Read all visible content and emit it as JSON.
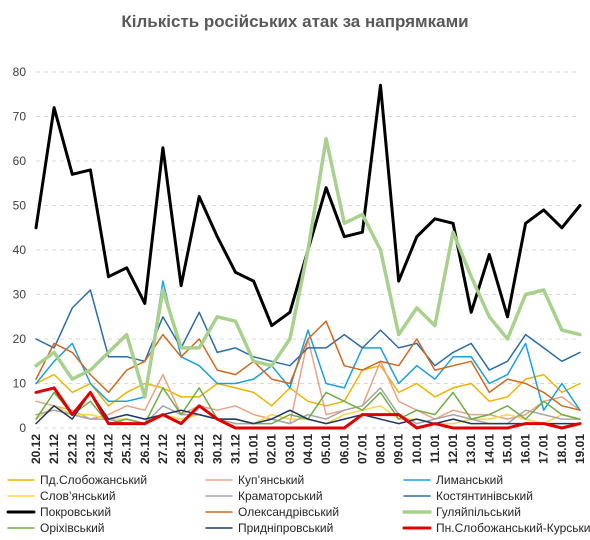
{
  "chart_data": {
    "type": "line",
    "title": "Кількість російських атак за напрямками",
    "xlabel": "",
    "ylabel": "",
    "ylim": [
      0,
      80
    ],
    "yticks": [
      0,
      10,
      20,
      30,
      40,
      50,
      60,
      70,
      80
    ],
    "grid": "horizontal dashed",
    "legend_position": "bottom",
    "categories": [
      "20.12",
      "21.12",
      "22.12",
      "23.12",
      "24.12",
      "25.12",
      "26.12",
      "27.12",
      "28.12",
      "29.12",
      "30.12",
      "31.12",
      "01.01",
      "02.01",
      "03.01",
      "04.01",
      "05.01",
      "06.01",
      "07.01",
      "08.01",
      "09.01",
      "10.01",
      "11.01",
      "12.01",
      "13.01",
      "14.01",
      "15.01",
      "16.01",
      "17.01",
      "18.01",
      "19.01"
    ],
    "xticks_shown": [
      "20.12",
      "21.12",
      "22.12",
      "23.12",
      "24.12",
      "25.12",
      "26.12",
      "27.12",
      "28.12",
      "29.12",
      "30.12",
      "31.12",
      "01.01",
      "02.01",
      "03.01",
      "04.01",
      "05.01",
      "06.01",
      "07.01",
      "08.01",
      "09.01",
      "10.01",
      "11.01",
      "12.01",
      "13.01",
      "14.01",
      "15.01",
      "16.01",
      "17.01",
      "18.01",
      "19.01"
    ],
    "series": [
      {
        "name": "Пд.Слобожанський",
        "color": "#F0B400",
        "width": 1.5,
        "values": [
          10,
          12,
          8,
          10,
          5,
          8,
          10,
          9,
          7,
          7,
          10,
          9,
          8,
          5,
          9,
          6,
          5,
          6,
          13,
          14,
          8,
          10,
          7,
          9,
          10,
          6,
          7,
          11,
          12,
          8,
          10
        ]
      },
      {
        "name": "Куп’янський",
        "color": "#E8A487",
        "width": 1.5,
        "values": [
          6,
          5,
          4,
          2,
          3,
          5,
          4,
          12,
          3,
          5,
          4,
          5,
          3,
          2,
          1,
          20,
          3,
          4,
          5,
          15,
          6,
          4,
          2,
          4,
          3,
          3,
          2,
          3,
          6,
          7,
          4
        ]
      },
      {
        "name": "Лиманський",
        "color": "#18A0E0",
        "width": 1.5,
        "values": [
          10,
          15,
          19,
          10,
          6,
          6,
          7,
          33,
          16,
          14,
          10,
          10,
          11,
          14,
          9,
          22,
          10,
          9,
          18,
          18,
          10,
          14,
          11,
          16,
          16,
          10,
          12,
          19,
          4,
          10,
          4
        ]
      },
      {
        "name": "Слов’янський",
        "color": "#FFD34D",
        "width": 1.5,
        "values": [
          2,
          5,
          3,
          3,
          2,
          2,
          1,
          3,
          2,
          3,
          2,
          1,
          1,
          3,
          2,
          2,
          1,
          3,
          4,
          5,
          2,
          2,
          1,
          1,
          2,
          2,
          3,
          2,
          1,
          3,
          2
        ]
      },
      {
        "name": "Краматорський",
        "color": "#A6A6A6",
        "width": 1.5,
        "values": [
          3,
          4,
          3,
          2,
          2,
          1,
          1,
          5,
          3,
          3,
          2,
          1,
          1,
          2,
          1,
          3,
          2,
          4,
          5,
          9,
          3,
          1,
          2,
          3,
          2,
          1,
          1,
          4,
          3,
          2,
          2
        ]
      },
      {
        "name": "Костянтинівський",
        "color": "#2E6DA4",
        "width": 1.5,
        "values": [
          20,
          18,
          27,
          31,
          16,
          16,
          15,
          25,
          18,
          26,
          17,
          18,
          16,
          15,
          14,
          18,
          18,
          21,
          18,
          22,
          18,
          19,
          14,
          17,
          19,
          13,
          15,
          21,
          18,
          15,
          17
        ]
      },
      {
        "name": "Покровський",
        "color": "#000000",
        "width": 3,
        "values": [
          45,
          72,
          57,
          58,
          34,
          36,
          28,
          63,
          32,
          52,
          43,
          35,
          33,
          23,
          26,
          40,
          54,
          43,
          44,
          77,
          33,
          43,
          47,
          46,
          26,
          39,
          25,
          46,
          49,
          45,
          50
        ]
      },
      {
        "name": "Олександрівський",
        "color": "#D2691E",
        "width": 1.5,
        "values": [
          11,
          19,
          17,
          12,
          8,
          13,
          15,
          21,
          16,
          20,
          13,
          12,
          15,
          11,
          10,
          20,
          24,
          14,
          13,
          15,
          14,
          20,
          13,
          14,
          15,
          8,
          11,
          10,
          8,
          5,
          4
        ]
      },
      {
        "name": "Гуляйпільський",
        "color": "#A9D18E",
        "width": 3.5,
        "values": [
          14,
          17,
          11,
          13,
          17,
          21,
          7,
          31,
          18,
          18,
          25,
          24,
          15,
          14,
          20,
          40,
          65,
          46,
          48,
          40,
          21,
          27,
          23,
          44,
          34,
          25,
          20,
          30,
          31,
          22,
          21
        ]
      },
      {
        "name": "Оріхівський",
        "color": "#70AD47",
        "width": 1.5,
        "values": [
          2,
          8,
          3,
          6,
          1,
          2,
          1,
          9,
          3,
          9,
          2,
          2,
          1,
          1,
          3,
          2,
          8,
          6,
          4,
          8,
          2,
          4,
          3,
          8,
          2,
          3,
          5,
          2,
          6,
          3,
          2
        ]
      },
      {
        "name": "Придніпровський",
        "color": "#1F3864",
        "width": 1.5,
        "values": [
          1,
          5,
          2,
          8,
          2,
          3,
          2,
          3,
          4,
          3,
          2,
          2,
          1,
          2,
          4,
          2,
          1,
          2,
          3,
          2,
          1,
          2,
          1,
          2,
          1,
          1,
          1,
          1,
          1,
          1,
          1
        ]
      },
      {
        "name": "Пн.Слобожанський-Курський",
        "color": "#E00000",
        "width": 3,
        "values": [
          8,
          9,
          3,
          8,
          1,
          1,
          1,
          3,
          1,
          5,
          2,
          0,
          0,
          0,
          0,
          0,
          0,
          0,
          3,
          3,
          3,
          0,
          1,
          0,
          0,
          0,
          0,
          1,
          1,
          0,
          1
        ]
      }
    ]
  }
}
